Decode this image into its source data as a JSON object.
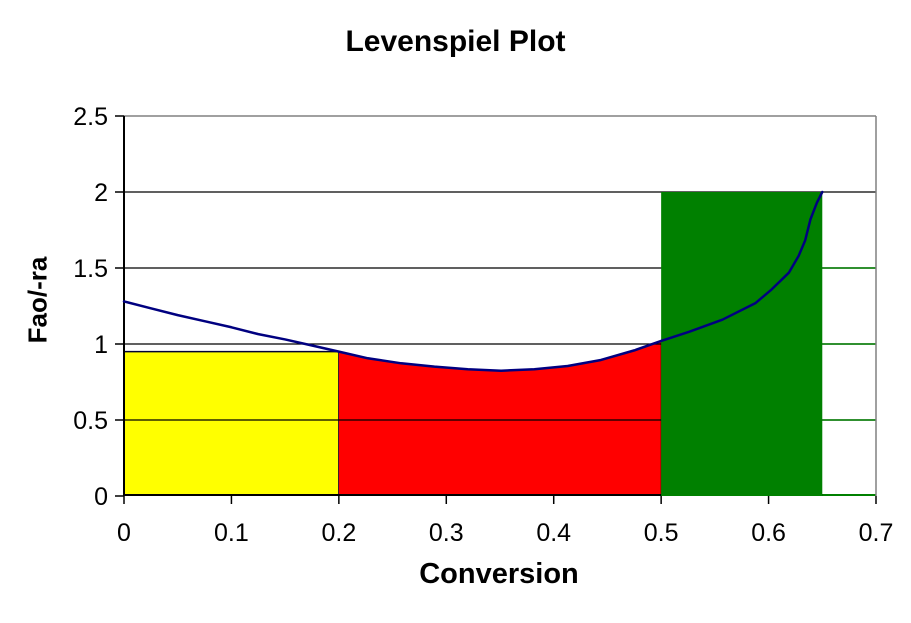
{
  "chart_data": {
    "type": "area",
    "title": "Levenspiel Plot",
    "xlabel": "Conversion",
    "ylabel": "Fao/-ra",
    "xlim": [
      0,
      0.7
    ],
    "ylim": [
      0,
      2.5
    ],
    "x_ticks": [
      0,
      0.1,
      0.2,
      0.3,
      0.4,
      0.5,
      0.6,
      0.7
    ],
    "y_ticks": [
      0,
      0.5,
      1,
      1.5,
      2,
      2.5
    ],
    "grid": "horizontal-only",
    "legend": "none",
    "gridlines": {
      "values": [
        0.5,
        1,
        1.5,
        2
      ],
      "color": "#000000"
    },
    "curve": {
      "name": "levenspiel-curve",
      "color": "#000080",
      "points": [
        [
          0,
          1.28
        ],
        [
          0.025,
          1.235
        ],
        [
          0.05,
          1.19
        ],
        [
          0.075,
          1.15
        ],
        [
          0.1,
          1.11
        ],
        [
          0.125,
          1.065
        ],
        [
          0.15,
          1.03
        ],
        [
          0.175,
          0.99
        ],
        [
          0.2,
          0.95
        ],
        [
          0.227,
          0.906
        ],
        [
          0.258,
          0.873
        ],
        [
          0.289,
          0.851
        ],
        [
          0.32,
          0.834
        ],
        [
          0.351,
          0.824
        ],
        [
          0.382,
          0.834
        ],
        [
          0.413,
          0.855
        ],
        [
          0.444,
          0.895
        ],
        [
          0.475,
          0.958
        ],
        [
          0.5,
          1.02
        ],
        [
          0.526,
          1.08
        ],
        [
          0.557,
          1.16
        ],
        [
          0.588,
          1.27
        ],
        [
          0.603,
          1.36
        ],
        [
          0.619,
          1.47
        ],
        [
          0.628,
          1.58
        ],
        [
          0.634,
          1.68
        ],
        [
          0.639,
          1.82
        ],
        [
          0.645,
          1.93
        ],
        [
          0.65,
          2.0
        ]
      ]
    },
    "regions": [
      {
        "name": "cstr-region-1",
        "shape": "rect",
        "layer": 1,
        "x0": 0,
        "x1": 0.2,
        "y0": 0,
        "y1": 0.95,
        "fill": "#ffff00",
        "border": "#000033",
        "border_sides": [
          "top",
          "right"
        ]
      },
      {
        "name": "pfr-region",
        "shape": "area-under-curve",
        "layer": 1,
        "x0": 0.2,
        "x1": 0.5,
        "fill": "#ff0000",
        "border": "#990000",
        "border_sides": [
          "right"
        ]
      },
      {
        "name": "cstr-region-2",
        "shape": "rect",
        "layer": 2,
        "x0": 0.5,
        "x1": 0.65,
        "y0": 0,
        "y1": 2.0,
        "fill": "#008000",
        "border": "#008000",
        "border_sides": []
      }
    ],
    "right_grid_segments": {
      "x0": 0.65,
      "x1": 0.7,
      "levels": [
        0,
        0.5,
        1,
        1.5
      ],
      "color": "#008000"
    },
    "colors": {
      "gridline": "#000000",
      "plot_border": "#808080",
      "axis": "#000000",
      "text": "#000000",
      "background": "#ffffff"
    }
  }
}
